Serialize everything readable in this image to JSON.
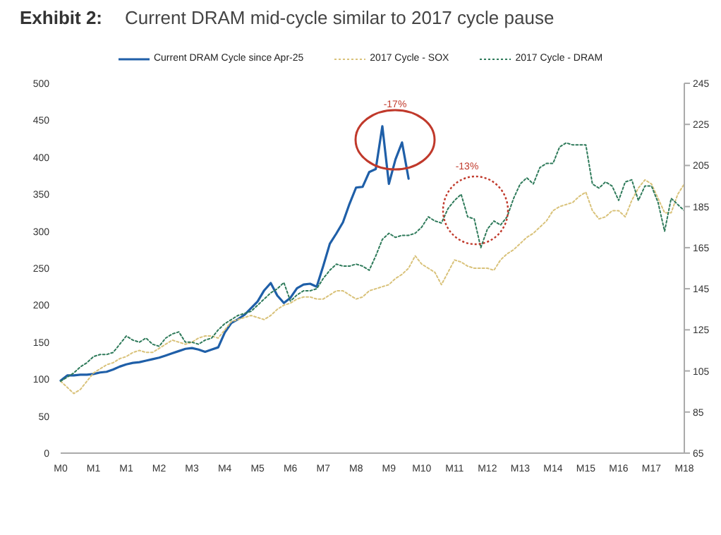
{
  "chart_data": {
    "type": "line",
    "title": "Exhibit 2:",
    "subtitle": "Current DRAM mid-cycle similar to 2017 cycle pause",
    "categories": [
      "M0",
      null,
      null,
      null,
      null,
      "M1",
      null,
      null,
      null,
      null,
      "M1",
      null,
      null,
      null,
      null,
      "M2",
      null,
      null,
      null,
      null,
      "M3",
      null,
      null,
      null,
      null,
      "M4",
      null,
      null,
      null,
      null,
      "M5",
      null,
      null,
      null,
      null,
      "M6",
      null,
      null,
      null,
      null,
      "M7",
      null,
      null,
      null,
      null,
      "M8",
      null,
      null,
      null,
      null,
      "M9",
      null,
      null,
      null,
      null,
      "M10",
      null,
      null,
      null,
      null,
      "M11",
      null,
      null,
      null,
      null,
      "M12",
      null,
      null,
      null,
      null,
      "M13",
      null,
      null,
      null,
      null,
      "M14",
      null,
      null,
      null,
      null,
      "M15",
      null,
      null,
      null,
      null,
      "M16",
      null,
      null,
      null,
      null,
      "M17",
      null,
      null,
      null,
      null,
      "M18"
    ],
    "ylim": [
      0,
      500
    ],
    "yticks": [
      0,
      50,
      100,
      150,
      200,
      250,
      300,
      350,
      400,
      450,
      500
    ],
    "y2lim": [
      65,
      245
    ],
    "y2ticks": [
      65,
      85,
      105,
      125,
      145,
      165,
      185,
      205,
      225,
      245
    ],
    "legend": "top",
    "marker": "none",
    "series": [
      {
        "name": "Current DRAM Cycle since Apr-25",
        "color": "#1f5fa8",
        "line_style": "solid",
        "values": [
          98,
          105,
          105,
          106,
          106,
          107,
          109,
          110,
          113,
          117,
          120,
          122,
          123,
          125,
          127,
          129,
          132,
          135,
          138,
          141,
          142,
          140,
          137,
          140,
          143,
          163,
          176,
          181,
          187,
          196,
          205,
          220,
          230,
          213,
          203,
          210,
          223,
          228,
          229,
          225,
          253,
          283,
          297,
          312,
          337,
          359,
          360,
          380,
          384,
          442,
          364,
          397,
          420,
          371,
          null,
          null,
          null,
          null,
          null,
          null,
          null,
          null,
          null,
          null,
          null,
          null,
          null,
          null,
          null,
          null,
          null,
          null,
          null,
          null,
          null,
          null,
          null,
          null,
          null,
          null,
          null,
          null,
          null,
          null,
          null,
          null,
          null,
          null,
          null,
          null,
          null,
          null,
          null,
          null,
          null,
          null
        ]
      },
      {
        "name": "2017 Cycle - SOX",
        "color": "#d9c27a",
        "line_style": "dotted",
        "axis": "y2",
        "values": [
          100,
          97,
          94,
          96,
          100,
          104,
          106,
          108,
          109,
          111,
          112,
          114,
          115,
          114,
          114,
          116,
          118,
          120,
          119,
          118,
          119,
          121,
          122,
          122,
          121,
          125,
          129,
          130,
          131,
          132,
          131,
          130,
          132,
          135,
          137,
          138,
          140,
          141,
          141,
          140,
          140,
          142,
          144,
          144,
          142,
          140,
          141,
          144,
          145,
          146,
          147,
          150,
          152,
          155,
          161,
          157,
          155,
          153,
          147,
          153,
          159,
          158,
          156,
          155,
          155,
          155,
          154,
          159,
          162,
          164,
          167,
          170,
          172,
          175,
          178,
          183,
          185,
          186,
          187,
          190,
          192,
          183,
          179,
          180,
          183,
          183,
          180,
          188,
          194,
          198,
          196,
          189,
          182,
          182,
          191,
          196
        ]
      },
      {
        "name": "2017 Cycle - DRAM",
        "color": "#2e7a5a",
        "line_style": "dotted",
        "axis": "y2",
        "values": [
          100,
          102,
          104,
          107,
          109,
          112,
          113,
          113,
          114,
          118,
          122,
          120,
          119,
          121,
          118,
          117,
          121,
          123,
          124,
          119,
          119,
          118,
          120,
          121,
          125,
          128,
          130,
          132,
          133,
          134,
          137,
          140,
          143,
          145,
          148,
          139,
          142,
          144,
          144,
          145,
          150,
          154,
          157,
          156,
          156,
          157,
          156,
          154,
          161,
          169,
          172,
          170,
          171,
          171,
          172,
          175,
          180,
          178,
          177,
          184,
          188,
          191,
          180,
          179,
          165,
          174,
          178,
          176,
          180,
          189,
          196,
          199,
          196,
          204,
          206,
          206,
          214,
          216,
          215,
          215,
          215,
          196,
          194,
          197,
          195,
          188,
          197,
          198,
          188,
          195,
          195,
          187,
          173,
          189,
          186,
          183
        ]
      }
    ],
    "annotations": [
      "-17%",
      "-13%"
    ]
  }
}
